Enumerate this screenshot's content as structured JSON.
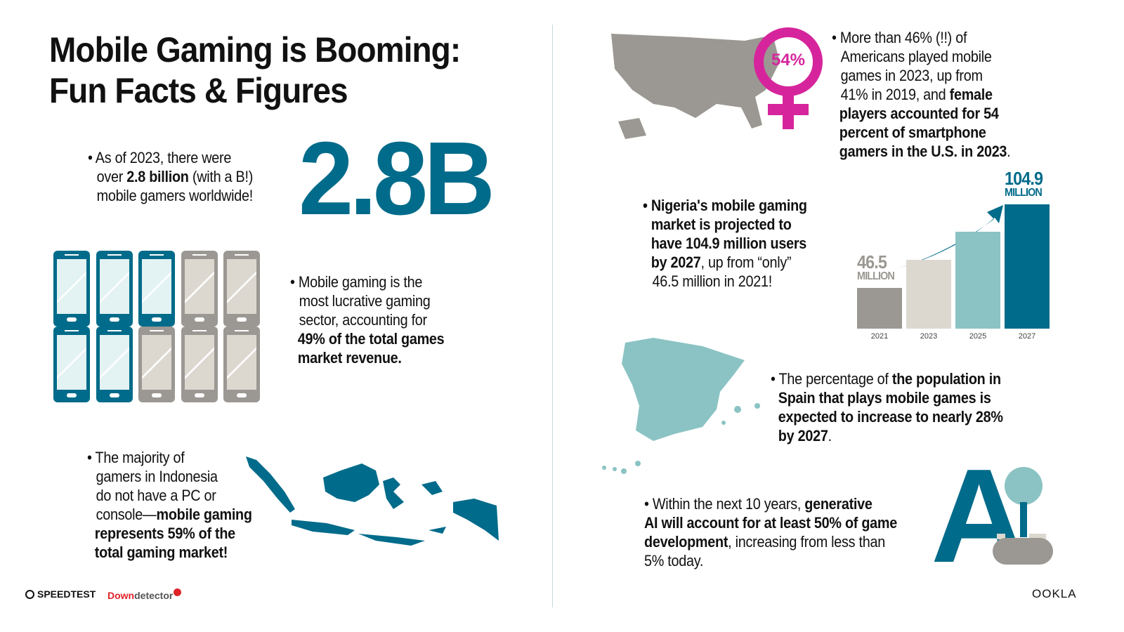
{
  "title_line1": "Mobile Gaming is Booming:",
  "title_line2": "Fun Facts & Figures",
  "fact_gamers": {
    "pre": "• As of 2023, there were",
    "pre2": "over ",
    "bold": "2.8 billion",
    "post": " (with a B!)",
    "line3": "mobile gamers worldwide!",
    "big": "2.8B"
  },
  "fact_revenue": {
    "l1": "• Mobile gaming is the",
    "l2": "most lucrative gaming",
    "l3": "sector, accounting for",
    "b1": "49% of the total games",
    "b2": "market revenue.",
    "filled_share": 0.49
  },
  "fact_indonesia": {
    "l1": "• The majority of",
    "l2": "gamers in Indonesia",
    "l3": "do not have a PC or",
    "l4": "console—",
    "b1": "mobile gaming",
    "b2": "represents 59% of the",
    "b3": "total gaming market!"
  },
  "fact_us": {
    "l1": "• More than 46% (!!) of",
    "l2": "Americans played mobile",
    "l3": "games in 2023, up from",
    "l4": "41% in 2019, and ",
    "b1": "female",
    "b2": "players accounted for 54",
    "b3": "percent of smartphone",
    "b4": "gamers in the U.S. in 2023",
    "end": ".",
    "badge": "54%"
  },
  "fact_nigeria": {
    "b1": "• Nigeria's mobile gaming",
    "b2": "market is projected to",
    "b3": "have 104.9 million users",
    "b4": "by 2027",
    "t4": ", up from “only”",
    "t5": "46.5 million in 2021!"
  },
  "chart_data": {
    "type": "bar",
    "categories": [
      "2021",
      "2023",
      "2025",
      "2027"
    ],
    "values": [
      46.5,
      null,
      null,
      104.9
    ],
    "labels": [
      {
        "value": "46.5",
        "unit": "MILLION"
      },
      null,
      null,
      {
        "value": "104.9",
        "unit": "MILLION"
      }
    ],
    "colors": [
      "#9b9893",
      "#dcd8d0",
      "#8bc3c4",
      "#006b8a"
    ]
  },
  "fact_spain": {
    "l1": "• The percentage of ",
    "b1": "the population in",
    "b2": "Spain that plays mobile games is",
    "b3": "expected to increase to nearly 28%",
    "b4": "by 2027",
    "end": "."
  },
  "fact_ai": {
    "l1": "• Within the next 10 years, ",
    "b1": "generative",
    "b2": "AI will account for at least 50% of game",
    "b3": "development",
    "t3": ", increasing from less than",
    "t4": "5% today.",
    "logo": "A"
  },
  "footer": {
    "speedtest": "SPEEDTEST",
    "down": "Down",
    "detector": "detector",
    "ookla": "OOKLA"
  },
  "colors": {
    "teal": "#006b8a",
    "light_teal": "#8bc3c4",
    "gray": "#9b9893",
    "magenta": "#d6259c"
  }
}
